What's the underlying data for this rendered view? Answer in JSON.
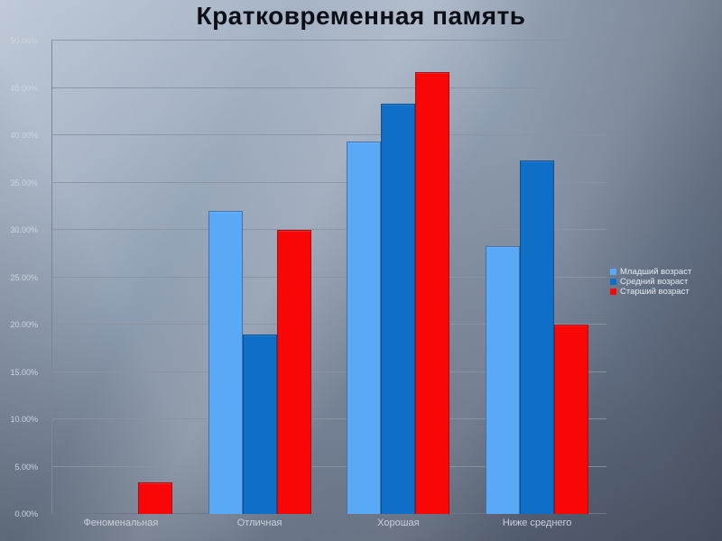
{
  "slide": {
    "title": "Кратковременная память"
  },
  "chart_data": {
    "type": "bar",
    "title": "Кратковременная память",
    "categories": [
      "Феноменальная",
      "Отличная",
      "Хорошая",
      "Ниже среднего"
    ],
    "series": [
      {
        "name": "Младший возраст",
        "color": "#5AA9F7",
        "values": [
          0,
          32.0,
          39.3,
          28.3
        ]
      },
      {
        "name": "Средний возраст",
        "color": "#0F6FC6",
        "values": [
          0,
          19.0,
          43.3,
          37.3
        ]
      },
      {
        "name": "Старший возраст",
        "color": "#F90606",
        "values": [
          3.3,
          30.0,
          46.7,
          20.0
        ]
      }
    ],
    "xlabel": "",
    "ylabel": "",
    "ylim": [
      0,
      50
    ],
    "y_tick_step": 5,
    "y_tick_labels": [
      "0.00%",
      "5.00%",
      "10.00%",
      "15.00%",
      "20.00%",
      "25.00%",
      "30.00%",
      "35.00%",
      "40.00%",
      "45.00%",
      "50.00%"
    ],
    "grid": true,
    "legend_position": "right"
  }
}
